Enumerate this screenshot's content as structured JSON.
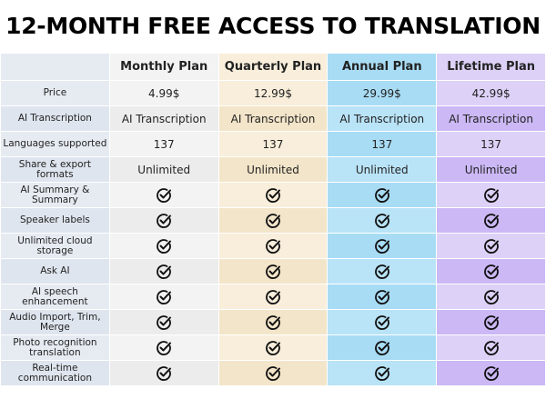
{
  "title": "12-MONTH FREE ACCESS  TO TRANSLATION",
  "table": {
    "columns": [
      "Monthly Plan",
      "Quarterly Plan",
      "Annual Plan",
      "Lifetime Plan"
    ],
    "rows": [
      {
        "label": "Price",
        "cells": [
          "4.99$",
          "12.99$",
          "29.99$",
          "42.99$"
        ]
      },
      {
        "label": "AI Transcription",
        "cells": [
          "AI Transcription",
          "AI Transcription",
          "AI Transcription",
          "AI Transcription"
        ]
      },
      {
        "label": "Languages supported",
        "cells": [
          "137",
          "137",
          "137",
          "137"
        ]
      },
      {
        "label": "Share & export formats",
        "cells": [
          "Unlimited",
          "Unlimited",
          "Unlimited",
          "Unlimited"
        ]
      },
      {
        "label": "AI Summary & Summary",
        "cells": [
          true,
          true,
          true,
          true
        ]
      },
      {
        "label": "Speaker labels",
        "cells": [
          true,
          true,
          true,
          true
        ]
      },
      {
        "label": "Unlimited cloud storage",
        "cells": [
          true,
          true,
          true,
          true
        ]
      },
      {
        "label": "Ask AI",
        "cells": [
          true,
          true,
          true,
          true
        ]
      },
      {
        "label": "AI speech enhancement",
        "cells": [
          true,
          true,
          true,
          true
        ]
      },
      {
        "label": "Audio Import, Trim, Merge",
        "cells": [
          true,
          true,
          true,
          true
        ]
      },
      {
        "label": "Photo recognition translation",
        "cells": [
          true,
          true,
          true,
          true
        ]
      },
      {
        "label": "Real-time communication",
        "cells": [
          true,
          true,
          true,
          true
        ]
      }
    ]
  }
}
